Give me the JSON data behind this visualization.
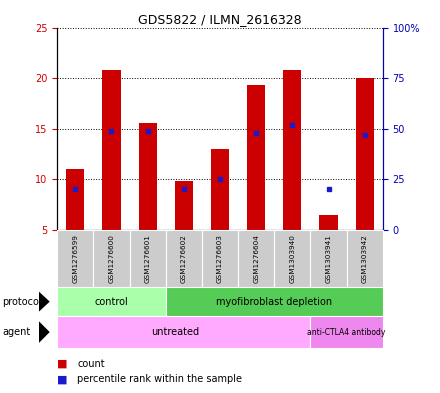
{
  "title": "GDS5822 / ILMN_2616328",
  "samples": [
    "GSM1276599",
    "GSM1276600",
    "GSM1276601",
    "GSM1276602",
    "GSM1276603",
    "GSM1276604",
    "GSM1303940",
    "GSM1303941",
    "GSM1303942"
  ],
  "counts": [
    11.0,
    20.8,
    15.6,
    9.8,
    13.0,
    19.3,
    20.8,
    6.5,
    20.0
  ],
  "percentiles": [
    20,
    49,
    49,
    20,
    25,
    48,
    52,
    20,
    47
  ],
  "y_min": 5,
  "y_max": 25,
  "y_ticks": [
    5,
    10,
    15,
    20,
    25
  ],
  "y2_ticks": [
    0,
    25,
    50,
    75,
    100
  ],
  "y2_labels": [
    "0",
    "25",
    "50",
    "75",
    "100%"
  ],
  "bar_color": "#cc0000",
  "dot_color": "#1a1acc",
  "bar_width": 0.5,
  "protocol_color_light": "#aaffaa",
  "protocol_color": "#55cc55",
  "agent_color": "#ffaaff",
  "agent_color2": "#ee88ee",
  "sample_bg_color": "#cccccc",
  "legend_count_color": "#cc0000",
  "legend_dot_color": "#1a1acc"
}
